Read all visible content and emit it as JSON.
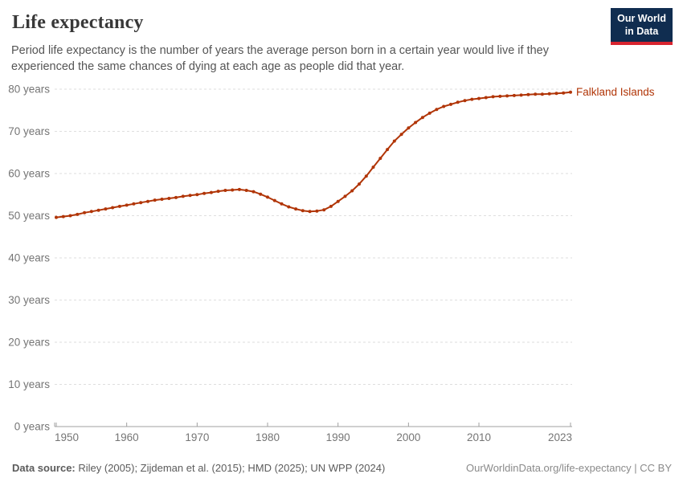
{
  "header": {
    "title": "Life expectancy",
    "subtitle": "Period life expectancy is the number of years the average person born in a certain year would live if they experienced the same chances of dying at each age as people did that year.",
    "logo_line1": "Our World",
    "logo_line2": "in Data",
    "logo_bg_color": "#102d50",
    "logo_accent_color": "#d8242f"
  },
  "chart_data": {
    "type": "line",
    "title": "Life expectancy",
    "xlabel": "",
    "ylabel": "",
    "xlim": [
      1950,
      2023
    ],
    "ylim": [
      0,
      80
    ],
    "grid": "horizontal-dashed",
    "legend_position": "end-of-line-label",
    "line_color": "#b13507",
    "axis_color": "#a0a0a0",
    "grid_color": "#dedede",
    "tick_label_color": "#757575",
    "entity_label": "Falkland Islands",
    "yticks": [
      {
        "value": 0,
        "label": "0 years"
      },
      {
        "value": 10,
        "label": "10 years"
      },
      {
        "value": 20,
        "label": "20 years"
      },
      {
        "value": 30,
        "label": "30 years"
      },
      {
        "value": 40,
        "label": "40 years"
      },
      {
        "value": 50,
        "label": "50 years"
      },
      {
        "value": 60,
        "label": "60 years"
      },
      {
        "value": 70,
        "label": "70 years"
      },
      {
        "value": 80,
        "label": "80 years"
      }
    ],
    "xticks": [
      {
        "value": 1950,
        "label": "1950"
      },
      {
        "value": 1960,
        "label": "1960"
      },
      {
        "value": 1970,
        "label": "1970"
      },
      {
        "value": 1980,
        "label": "1980"
      },
      {
        "value": 1990,
        "label": "1990"
      },
      {
        "value": 2000,
        "label": "2000"
      },
      {
        "value": 2010,
        "label": "2010"
      },
      {
        "value": 2023,
        "label": "2023"
      }
    ],
    "x": [
      1950,
      1951,
      1952,
      1953,
      1954,
      1955,
      1956,
      1957,
      1958,
      1959,
      1960,
      1961,
      1962,
      1963,
      1964,
      1965,
      1966,
      1967,
      1968,
      1969,
      1970,
      1971,
      1972,
      1973,
      1974,
      1975,
      1976,
      1977,
      1978,
      1979,
      1980,
      1981,
      1982,
      1983,
      1984,
      1985,
      1986,
      1987,
      1988,
      1989,
      1990,
      1991,
      1992,
      1993,
      1994,
      1995,
      1996,
      1997,
      1998,
      1999,
      2000,
      2001,
      2002,
      2003,
      2004,
      2005,
      2006,
      2007,
      2008,
      2009,
      2010,
      2011,
      2012,
      2013,
      2014,
      2015,
      2016,
      2017,
      2018,
      2019,
      2020,
      2021,
      2022,
      2023
    ],
    "series": [
      {
        "name": "Falkland Islands",
        "color": "#b13507",
        "values": [
          49.6,
          49.8,
          50.0,
          50.3,
          50.7,
          51.0,
          51.3,
          51.6,
          51.9,
          52.2,
          52.5,
          52.8,
          53.1,
          53.4,
          53.7,
          53.9,
          54.1,
          54.3,
          54.6,
          54.8,
          55.0,
          55.3,
          55.5,
          55.8,
          56.0,
          56.1,
          56.2,
          56.0,
          55.7,
          55.1,
          54.4,
          53.6,
          52.8,
          52.1,
          51.6,
          51.2,
          51.0,
          51.1,
          51.4,
          52.2,
          53.4,
          54.6,
          55.9,
          57.5,
          59.4,
          61.5,
          63.6,
          65.7,
          67.7,
          69.3,
          70.8,
          72.1,
          73.3,
          74.3,
          75.2,
          75.9,
          76.4,
          76.9,
          77.3,
          77.6,
          77.8,
          78.0,
          78.2,
          78.3,
          78.4,
          78.5,
          78.6,
          78.7,
          78.8,
          78.8,
          78.9,
          79.0,
          79.1,
          79.3
        ]
      }
    ]
  },
  "footer": {
    "source_label": "Data source:",
    "source_text": " Riley (2005); Zijdeman et al. (2015); HMD (2025); UN WPP (2024)",
    "credit": "OurWorldinData.org/life-expectancy | CC BY"
  }
}
